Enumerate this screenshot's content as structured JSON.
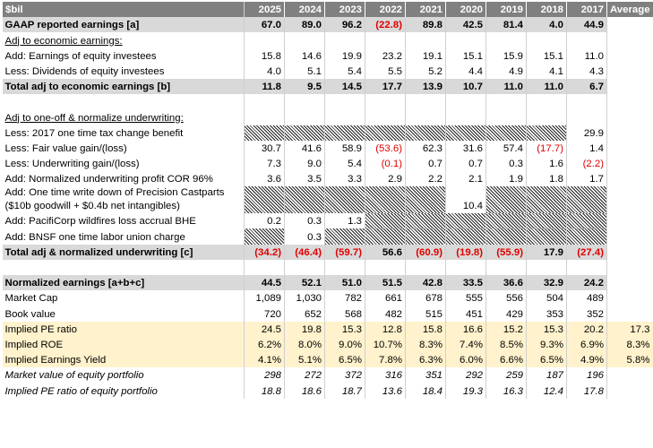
{
  "table": {
    "header": [
      "$bil",
      "2025",
      "2024",
      "2023",
      "2022",
      "2021",
      "2020",
      "2019",
      "2018",
      "2017",
      "Average"
    ],
    "rows": [
      {
        "label": "GAAP reported earnings [a]",
        "style": "total",
        "cells": [
          "67.0",
          "89.0",
          "96.2",
          "(22.8)",
          "89.8",
          "42.5",
          "81.4",
          "4.0",
          "44.9",
          null
        ]
      },
      {
        "label": "Adj to economic earnings:",
        "style": "section",
        "cells": [
          null,
          null,
          null,
          null,
          null,
          null,
          null,
          null,
          null,
          null
        ]
      },
      {
        "label": "Add: Earnings of equity investees",
        "cells": [
          "15.8",
          "14.6",
          "19.9",
          "23.2",
          "19.1",
          "15.1",
          "15.9",
          "15.1",
          "11.0",
          null
        ]
      },
      {
        "label": "Less: Dividends of equity investees",
        "cells": [
          "4.0",
          "5.1",
          "5.4",
          "5.5",
          "5.2",
          "4.4",
          "4.9",
          "4.1",
          "4.3",
          null
        ]
      },
      {
        "label": "Total adj to economic earnings [b]",
        "style": "total",
        "cells": [
          "11.8",
          "9.5",
          "14.5",
          "17.7",
          "13.9",
          "10.7",
          "11.0",
          "11.0",
          "6.7",
          null
        ]
      },
      {
        "label": null,
        "cells": [
          null,
          null,
          null,
          null,
          null,
          null,
          null,
          null,
          null,
          null
        ]
      },
      {
        "label": "Adj to one-off & normalize underwriting:",
        "style": "section",
        "cells": [
          null,
          null,
          null,
          null,
          null,
          null,
          null,
          null,
          null,
          null
        ]
      },
      {
        "label": "Less: 2017 one time tax change benefit",
        "hatched": [
          0,
          1,
          2,
          3,
          4,
          5,
          6,
          7
        ],
        "cells": [
          null,
          null,
          null,
          null,
          null,
          null,
          null,
          null,
          "29.9",
          null
        ]
      },
      {
        "label": "Less: Fair value gain/(loss)",
        "cells": [
          "30.7",
          "41.6",
          "58.9",
          "(53.6)",
          "62.3",
          "31.6",
          "57.4",
          "(17.7)",
          "1.4",
          null
        ]
      },
      {
        "label": "Less: Underwriting gain/(loss)",
        "cells": [
          "7.3",
          "9.0",
          "5.4",
          "(0.1)",
          "0.7",
          "0.7",
          "0.3",
          "1.6",
          "(2.2)",
          null
        ]
      },
      {
        "label": "Add: Normalized underwriting profit COR 96%",
        "cells": [
          "3.6",
          "3.5",
          "3.3",
          "2.9",
          "2.2",
          "2.1",
          "1.9",
          "1.8",
          "1.7",
          null
        ]
      },
      {
        "label": "Add: One time write down of Precision Castparts ($10b goodwill + $0.4b net intangibles)",
        "style": "wrap",
        "hatched": [
          0,
          1,
          2,
          3,
          4,
          6,
          7,
          8
        ],
        "cells": [
          null,
          null,
          null,
          null,
          null,
          "10.4",
          null,
          null,
          null,
          null
        ]
      },
      {
        "label": "Add: PacifiCorp wildfires loss accrual BHE",
        "hatched": [
          3,
          4,
          5,
          6,
          7,
          8
        ],
        "cells": [
          "0.2",
          "0.3",
          "1.3",
          null,
          null,
          null,
          null,
          null,
          null,
          null
        ]
      },
      {
        "label": "Add: BNSF one time labor union charge",
        "hatched": [
          0,
          2,
          3,
          4,
          5,
          6,
          7,
          8
        ],
        "cells": [
          null,
          "0.3",
          null,
          null,
          null,
          null,
          null,
          null,
          null,
          null
        ]
      },
      {
        "label": "Total adj & normalized underwriting [c]",
        "style": "total",
        "cells": [
          "(34.2)",
          "(46.4)",
          "(59.7)",
          "56.6",
          "(60.9)",
          "(19.8)",
          "(55.9)",
          "17.9",
          "(27.4)",
          null
        ]
      },
      {
        "label": null,
        "cells": [
          null,
          null,
          null,
          null,
          null,
          null,
          null,
          null,
          null,
          null
        ]
      },
      {
        "label": "Normalized earnings [a+b+c]",
        "style": "total",
        "cells": [
          "44.5",
          "52.1",
          "51.0",
          "51.5",
          "42.8",
          "33.5",
          "36.6",
          "32.9",
          "24.2",
          null
        ]
      },
      {
        "label": "Market Cap",
        "cells": [
          "1,089",
          "1,030",
          "782",
          "661",
          "678",
          "555",
          "556",
          "504",
          "489",
          null
        ]
      },
      {
        "label": "Book value",
        "cells": [
          "720",
          "652",
          "568",
          "482",
          "515",
          "451",
          "429",
          "353",
          "352",
          null
        ]
      },
      {
        "label": "Implied PE ratio",
        "style": "yield",
        "cells": [
          "24.5",
          "19.8",
          "15.3",
          "12.8",
          "15.8",
          "16.6",
          "15.2",
          "15.3",
          "20.2",
          "17.3"
        ]
      },
      {
        "label": "Implied ROE",
        "style": "yield",
        "cells": [
          "6.2%",
          "8.0%",
          "9.0%",
          "10.7%",
          "8.3%",
          "7.4%",
          "8.5%",
          "9.3%",
          "6.9%",
          "8.3%"
        ]
      },
      {
        "label": "Implied Earnings Yield",
        "style": "yield",
        "cells": [
          "4.1%",
          "5.1%",
          "6.5%",
          "7.8%",
          "6.3%",
          "6.0%",
          "6.6%",
          "6.5%",
          "4.9%",
          "5.8%"
        ]
      },
      {
        "label": "Market value of equity portfolio",
        "style": "italic",
        "cells": [
          "298",
          "272",
          "372",
          "316",
          "351",
          "292",
          "259",
          "187",
          "196",
          null
        ]
      },
      {
        "label": "Implied PE ratio of equity portfolio",
        "style": "italic",
        "cells": [
          "18.8",
          "18.6",
          "18.7",
          "13.6",
          "18.4",
          "19.3",
          "16.3",
          "12.4",
          "17.8",
          null
        ]
      }
    ]
  }
}
